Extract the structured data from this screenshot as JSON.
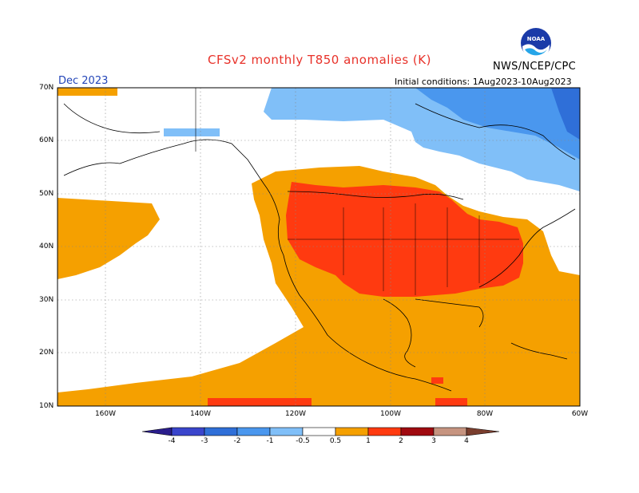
{
  "header": {
    "title": "CFSv2 monthly T850 anomalies (K)",
    "month": "Dec 2023",
    "organization": "NWS/NCEP/CPC",
    "initial_conditions": "Initial conditions: 1Aug2023-10Aug2023",
    "logo_text": "NOAA"
  },
  "axes": {
    "lat_labels": [
      "70N",
      "60N",
      "50N",
      "40N",
      "30N",
      "20N",
      "10N"
    ],
    "lon_labels": [
      "160W",
      "140W",
      "120W",
      "100W",
      "80W",
      "60W"
    ]
  },
  "colorbar": {
    "labels": [
      "-4",
      "-3",
      "-2",
      "-1",
      "-0.5",
      "0.5",
      "1",
      "2",
      "3",
      "4"
    ],
    "colors": [
      "#2a1d8c",
      "#3a45cc",
      "#2f6fd8",
      "#4a97ee",
      "#80bff8",
      "#ffffff",
      "#f5a000",
      "#ff3a10",
      "#a00a10",
      "#c69480",
      "#7a3e2e"
    ]
  },
  "colors": {
    "anom_0_5_to_1": "#f5a000",
    "anom_1_to_2": "#ff3a10",
    "anom_neg_0_5_to_1": "#80bff8",
    "anom_neg_1_to_2": "#4a97ee",
    "anom_neg_2_to_3": "#2f6fd8"
  }
}
